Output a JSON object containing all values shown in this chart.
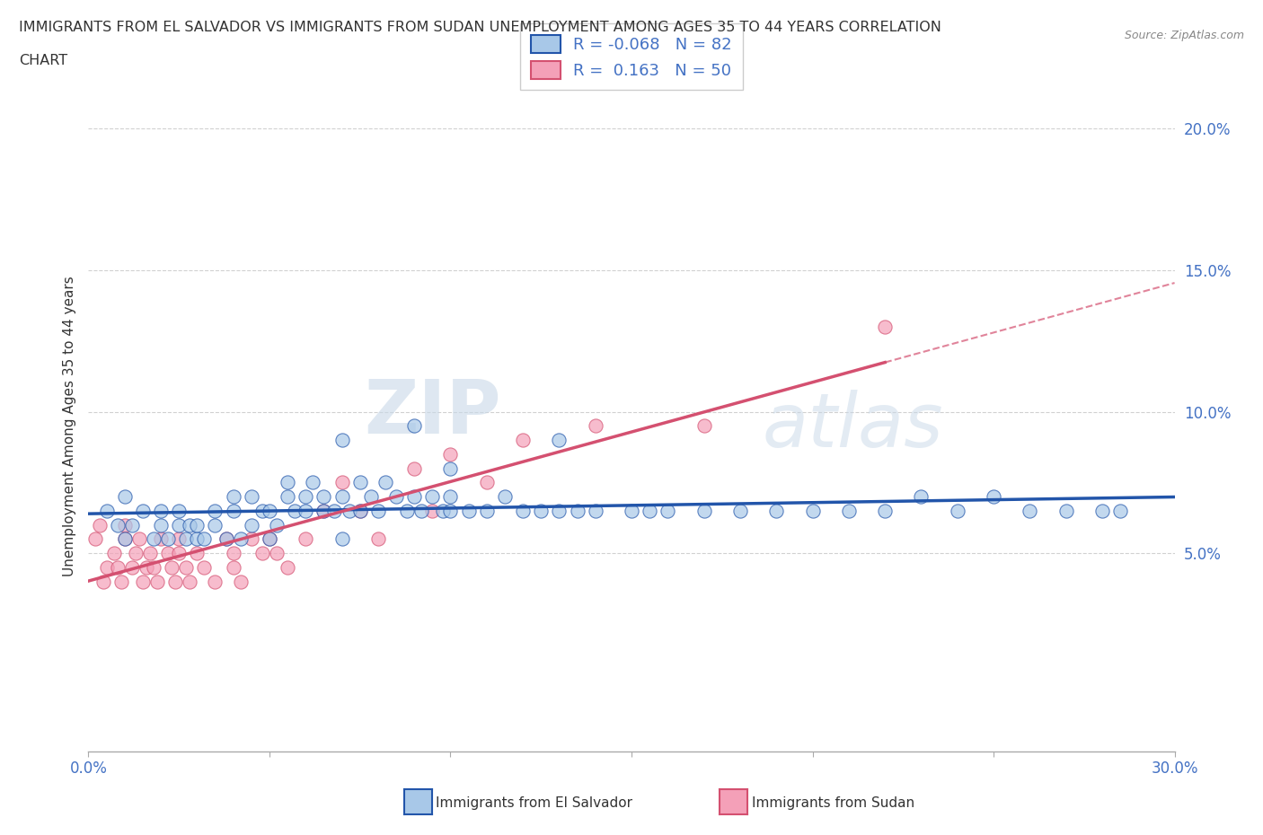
{
  "title_line1": "IMMIGRANTS FROM EL SALVADOR VS IMMIGRANTS FROM SUDAN UNEMPLOYMENT AMONG AGES 35 TO 44 YEARS CORRELATION",
  "title_line2": "CHART",
  "source": "Source: ZipAtlas.com",
  "ylabel": "Unemployment Among Ages 35 to 44 years",
  "xmin": 0.0,
  "xmax": 0.3,
  "ymin": -0.02,
  "ymax": 0.21,
  "yticks": [
    0.05,
    0.1,
    0.15,
    0.2
  ],
  "ytick_labels": [
    "5.0%",
    "10.0%",
    "15.0%",
    "20.0%"
  ],
  "xticks": [
    0.0,
    0.05,
    0.1,
    0.15,
    0.2,
    0.25,
    0.3
  ],
  "xtick_labels": [
    "0.0%",
    "",
    "",
    "",
    "",
    "",
    "30.0%"
  ],
  "color_salvador": "#a8c8e8",
  "color_sudan": "#f4a0b8",
  "trendline_salvador": "#2255aa",
  "trendline_sudan": "#d45070",
  "R_salvador": -0.068,
  "N_salvador": 82,
  "R_sudan": 0.163,
  "N_sudan": 50,
  "watermark_zip": "ZIP",
  "watermark_atlas": "atlas",
  "background_color": "#ffffff",
  "grid_color": "#cccccc",
  "salvador_x": [
    0.005,
    0.008,
    0.01,
    0.01,
    0.012,
    0.015,
    0.018,
    0.02,
    0.02,
    0.022,
    0.025,
    0.025,
    0.027,
    0.028,
    0.03,
    0.03,
    0.032,
    0.035,
    0.035,
    0.038,
    0.04,
    0.04,
    0.042,
    0.045,
    0.045,
    0.048,
    0.05,
    0.05,
    0.052,
    0.055,
    0.055,
    0.057,
    0.06,
    0.06,
    0.062,
    0.065,
    0.065,
    0.068,
    0.07,
    0.07,
    0.072,
    0.075,
    0.075,
    0.078,
    0.08,
    0.082,
    0.085,
    0.088,
    0.09,
    0.092,
    0.095,
    0.098,
    0.1,
    0.1,
    0.105,
    0.11,
    0.115,
    0.12,
    0.125,
    0.13,
    0.135,
    0.14,
    0.15,
    0.155,
    0.16,
    0.17,
    0.18,
    0.19,
    0.2,
    0.21,
    0.22,
    0.23,
    0.24,
    0.25,
    0.26,
    0.27,
    0.28,
    0.285,
    0.07,
    0.1,
    0.13,
    0.09
  ],
  "salvador_y": [
    0.065,
    0.06,
    0.055,
    0.07,
    0.06,
    0.065,
    0.055,
    0.06,
    0.065,
    0.055,
    0.06,
    0.065,
    0.055,
    0.06,
    0.055,
    0.06,
    0.055,
    0.065,
    0.06,
    0.055,
    0.07,
    0.065,
    0.055,
    0.06,
    0.07,
    0.065,
    0.055,
    0.065,
    0.06,
    0.07,
    0.075,
    0.065,
    0.07,
    0.065,
    0.075,
    0.065,
    0.07,
    0.065,
    0.055,
    0.07,
    0.065,
    0.075,
    0.065,
    0.07,
    0.065,
    0.075,
    0.07,
    0.065,
    0.07,
    0.065,
    0.07,
    0.065,
    0.065,
    0.07,
    0.065,
    0.065,
    0.07,
    0.065,
    0.065,
    0.065,
    0.065,
    0.065,
    0.065,
    0.065,
    0.065,
    0.065,
    0.065,
    0.065,
    0.065,
    0.065,
    0.065,
    0.07,
    0.065,
    0.07,
    0.065,
    0.065,
    0.065,
    0.065,
    0.09,
    0.08,
    0.09,
    0.095
  ],
  "sudan_x": [
    0.002,
    0.003,
    0.004,
    0.005,
    0.007,
    0.008,
    0.009,
    0.01,
    0.01,
    0.012,
    0.013,
    0.014,
    0.015,
    0.016,
    0.017,
    0.018,
    0.019,
    0.02,
    0.022,
    0.023,
    0.024,
    0.025,
    0.025,
    0.027,
    0.028,
    0.03,
    0.032,
    0.035,
    0.038,
    0.04,
    0.04,
    0.042,
    0.045,
    0.048,
    0.05,
    0.052,
    0.055,
    0.06,
    0.065,
    0.07,
    0.075,
    0.08,
    0.09,
    0.095,
    0.1,
    0.11,
    0.12,
    0.14,
    0.17,
    0.22
  ],
  "sudan_y": [
    0.055,
    0.06,
    0.04,
    0.045,
    0.05,
    0.045,
    0.04,
    0.06,
    0.055,
    0.045,
    0.05,
    0.055,
    0.04,
    0.045,
    0.05,
    0.045,
    0.04,
    0.055,
    0.05,
    0.045,
    0.04,
    0.055,
    0.05,
    0.045,
    0.04,
    0.05,
    0.045,
    0.04,
    0.055,
    0.05,
    0.045,
    0.04,
    0.055,
    0.05,
    0.055,
    0.05,
    0.045,
    0.055,
    0.065,
    0.075,
    0.065,
    0.055,
    0.08,
    0.065,
    0.085,
    0.075,
    0.09,
    0.095,
    0.095,
    0.13
  ]
}
